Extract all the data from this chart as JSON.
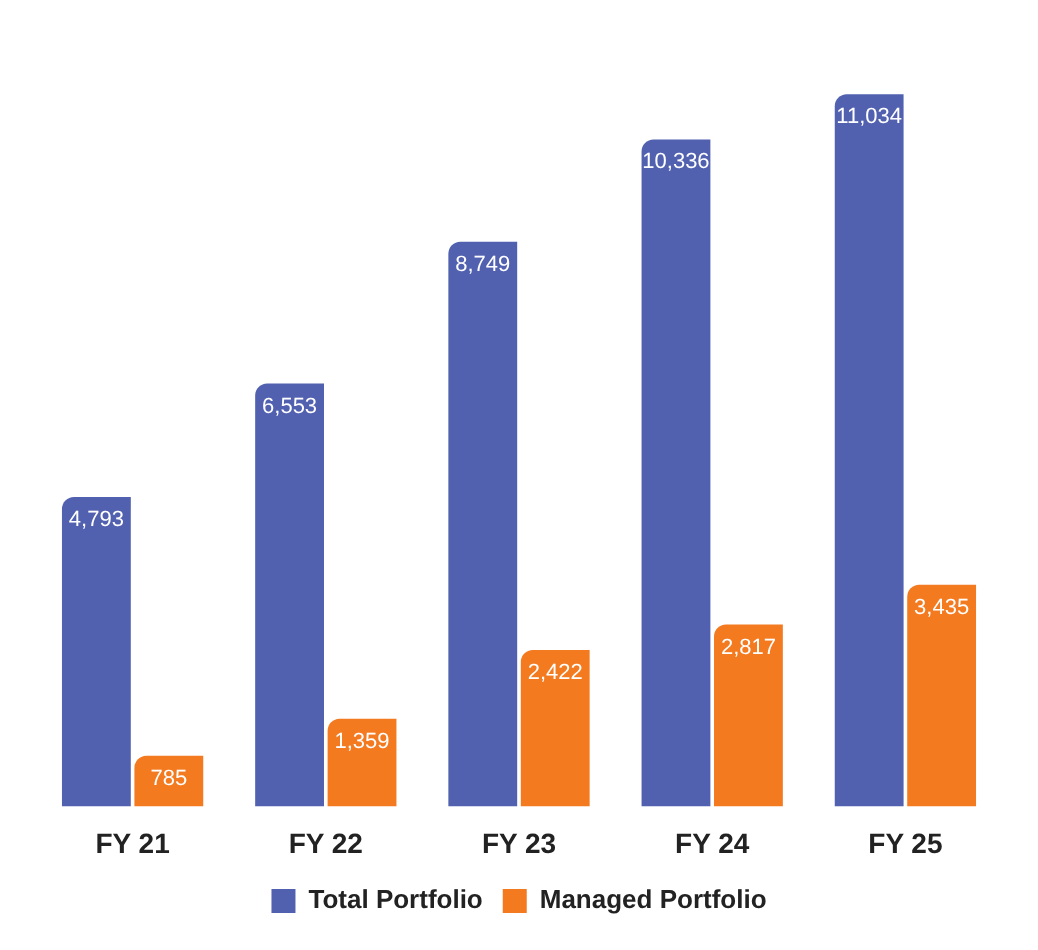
{
  "chart_data": {
    "type": "bar",
    "categories": [
      "FY 21",
      "FY 22",
      "FY 23",
      "FY 24",
      "FY 25"
    ],
    "series": [
      {
        "name": "Total Portfolio",
        "color": "#5161b0",
        "values": [
          4793,
          6553,
          8749,
          10336,
          11034
        ],
        "value_labels": [
          "4,793",
          "6,553",
          "8,749",
          "10,336",
          "11,034"
        ]
      },
      {
        "name": "Managed Portfolio",
        "color": "#f47a20",
        "values": [
          785,
          1359,
          2422,
          2817,
          3435
        ],
        "value_labels": [
          "785",
          "1,359",
          "2,422",
          "2,817",
          "3,435"
        ]
      }
    ],
    "legend": "bottom"
  }
}
